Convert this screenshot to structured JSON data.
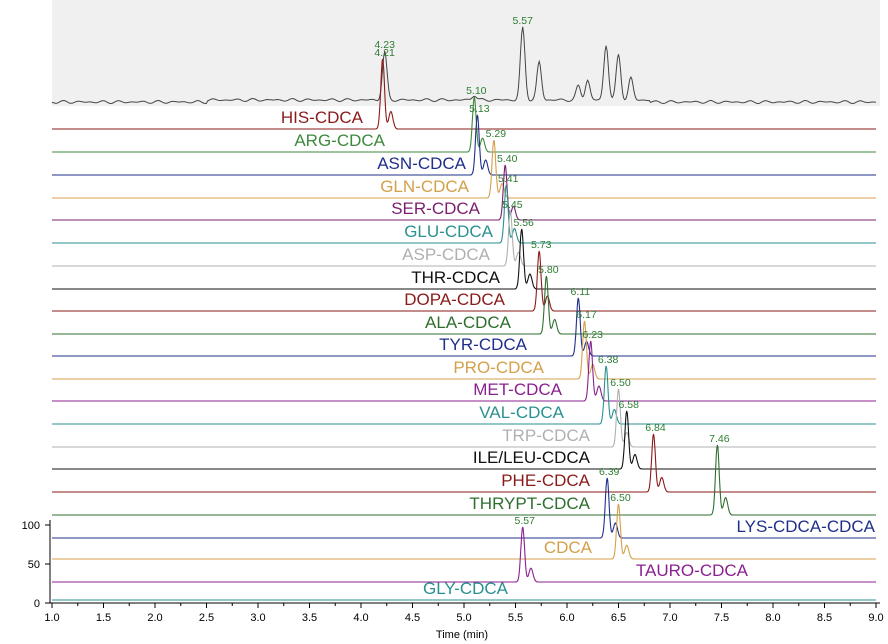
{
  "chart_data": {
    "type": "line",
    "xlabel": "Time (min)",
    "xlim": [
      1.0,
      9.0
    ],
    "x_ticks": [
      "1.0",
      "1.5",
      "2.0",
      "2.5",
      "3.0",
      "3.5",
      "4.0",
      "4.5",
      "5.0",
      "5.5",
      "6.0",
      "6.5",
      "7.0",
      "7.5",
      "8.0",
      "8.5",
      "9.0"
    ],
    "y_ticks": [
      "0",
      "50",
      "100"
    ],
    "ylim": [
      0,
      100
    ],
    "tic_trace": {
      "peaks": [
        {
          "rt": 4.23,
          "h": 48
        },
        {
          "rt": 5.1,
          "h": 5
        },
        {
          "rt": 5.57,
          "h": 72
        },
        {
          "rt": 5.73,
          "h": 38
        },
        {
          "rt": 6.11,
          "h": 14
        },
        {
          "rt": 6.2,
          "h": 20
        },
        {
          "rt": 6.38,
          "h": 55
        },
        {
          "rt": 6.5,
          "h": 45
        },
        {
          "rt": 6.62,
          "h": 22
        }
      ],
      "labels": [
        "4.23",
        "5.57"
      ]
    },
    "series": [
      {
        "name": "HIS-CDCA",
        "color": "#8b1a1a",
        "rt": 4.21,
        "rt_label": "4.21",
        "h": 70
      },
      {
        "name": "ARG-CDCA",
        "color": "#3d8a3d",
        "rt": 5.1,
        "rt_label": "5.10",
        "h": 55
      },
      {
        "name": "ASN-CDCA",
        "color": "#1f2f8b",
        "rt": 5.13,
        "rt_label": "5.13",
        "h": 60
      },
      {
        "name": "GLN-CDCA",
        "color": "#d4a04a",
        "rt": 5.29,
        "rt_label": "5.29",
        "h": 58
      },
      {
        "name": "SER-CDCA",
        "color": "#7a1f6e",
        "rt": 5.4,
        "rt_label": "5.40",
        "h": 55
      },
      {
        "name": "GLU-CDCA",
        "color": "#2a9090",
        "rt": 5.41,
        "rt_label": "5.41",
        "h": 58
      },
      {
        "name": "ASP-CDCA",
        "color": "#b0b0b0",
        "rt": 5.45,
        "rt_label": "5.45",
        "h": 55
      },
      {
        "name": "THR-CDCA",
        "color": "#111111",
        "rt": 5.56,
        "rt_label": "5.56",
        "h": 60
      },
      {
        "name": "DOPA-CDCA",
        "color": "#8b1a1a",
        "rt": 5.73,
        "rt_label": "5.73",
        "h": 60
      },
      {
        "name": "ALA-CDCA",
        "color": "#2e6e2e",
        "rt": 5.8,
        "rt_label": "5.80",
        "h": 58
      },
      {
        "name": "TYR-CDCA",
        "color": "#1f2f8b",
        "rt": 6.11,
        "rt_label": "6.11",
        "h": 58
      },
      {
        "name": "PRO-CDCA",
        "color": "#d4a04a",
        "rt": 6.17,
        "rt_label": "6.17",
        "h": 58
      },
      {
        "name": "MET-CDCA",
        "color": "#8b2090",
        "rt": 6.23,
        "rt_label": "6.23",
        "h": 60
      },
      {
        "name": "VAL-CDCA",
        "color": "#2a9090",
        "rt": 6.38,
        "rt_label": "6.38",
        "h": 58
      },
      {
        "name": "TRP-CDCA",
        "color": "#b0b0b0",
        "rt": 6.5,
        "rt_label": "6.50",
        "h": 58
      },
      {
        "name": "ILE/LEU-CDCA",
        "color": "#111111",
        "rt": 6.58,
        "rt_label": "6.58",
        "h": 58
      },
      {
        "name": "PHE-CDCA",
        "color": "#8b1a1a",
        "rt": 6.84,
        "rt_label": "6.84",
        "h": 58
      },
      {
        "name": "THRYPT-CDCA",
        "color": "#2e6e2e",
        "rt": 7.46,
        "rt_label": "7.46",
        "h": 70
      },
      {
        "name": "LYS-CDCA-CDCA",
        "color": "#1f2f8b",
        "rt": 6.39,
        "rt_label": "6.39",
        "h": 60
      },
      {
        "name": "CDCA",
        "color": "#d4a04a",
        "rt": 6.5,
        "rt_label": "6.50",
        "h": 55
      },
      {
        "name": "TAURO-CDCA",
        "color": "#8b2090",
        "rt": 5.57,
        "rt_label": "5.57",
        "h": 55
      },
      {
        "name": "GLY-CDCA",
        "color": "#2a9090",
        "rt": 0,
        "rt_label": "",
        "h": 0
      }
    ]
  }
}
